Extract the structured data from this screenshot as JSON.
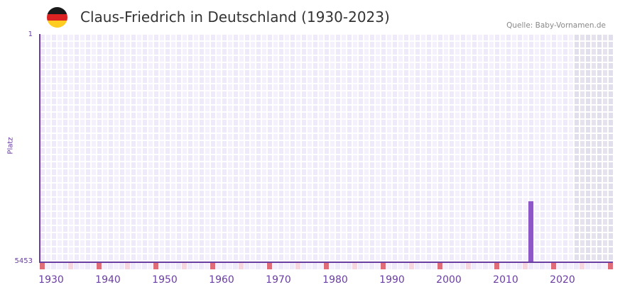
{
  "header": {
    "title": "Claus-Friedrich in Deutschland (1930-2023)",
    "source": "Quelle: Baby-Vornamen.de",
    "flag_colors": [
      "#1a1a1a",
      "#dd2222",
      "#ffcc22"
    ]
  },
  "colors": {
    "grid_even": "#efeafa",
    "grid_odd": "#f4f1fc",
    "future_shade": "#e2dfec",
    "axis": "#6a3ea1",
    "bar": "#8e57c7",
    "decade_marker": "#e06c78",
    "half_decade_marker": "#f5d6df"
  },
  "chart_data": {
    "type": "bar",
    "title": "Claus-Friedrich in Deutschland (1930-2023)",
    "xlabel": "",
    "ylabel": "Platz",
    "y_ticks": [
      "1",
      "5453"
    ],
    "ylim": [
      5453,
      1
    ],
    "y_inverted": true,
    "x_ticks": [
      "1930",
      "1940",
      "1950",
      "1960",
      "1970",
      "1980",
      "1990",
      "2000",
      "2010",
      "2020"
    ],
    "x_range": [
      1930,
      2030
    ],
    "future_shaded_from": 2024,
    "series": [
      {
        "name": "Platz",
        "x": [
          2016
        ],
        "values": [
          4000
        ]
      }
    ],
    "grid": true,
    "legend": null
  },
  "axis": {
    "y_top_label": "1",
    "y_bottom_label": "5453",
    "y_title": "Platz"
  }
}
